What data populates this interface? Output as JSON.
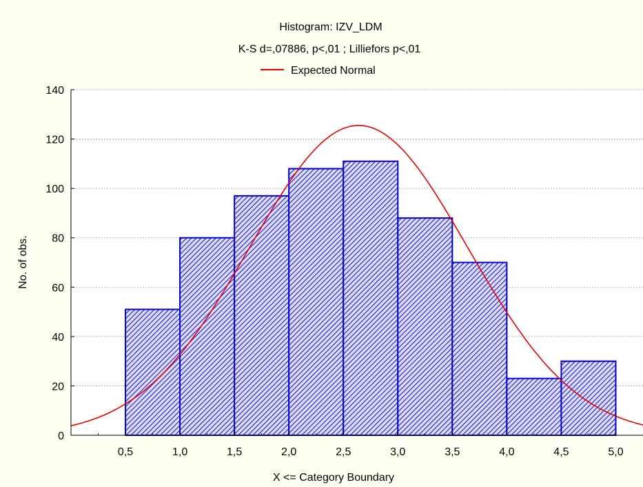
{
  "chart_data": {
    "type": "bar",
    "title": "Histogram: IZV_LDM",
    "subtitle": "K-S d=,07886, p<,01 ; Lilliefors p<,01",
    "xlabel": "X <= Category Boundary",
    "ylabel": "No. of obs.",
    "x_ticks": [
      "0,5",
      "1,0",
      "1,5",
      "2,0",
      "2,5",
      "3,0",
      "3,5",
      "4,0",
      "4,5",
      "5,0"
    ],
    "y_ticks": [
      "0",
      "20",
      "40",
      "60",
      "80",
      "100",
      "120",
      "140"
    ],
    "xlim": [
      0.0,
      5.25
    ],
    "ylim": [
      0,
      140
    ],
    "grid": "horizontal-dashed",
    "legend_position": "top-center",
    "bins": [
      {
        "from": 0.5,
        "to": 1.0,
        "count": 51
      },
      {
        "from": 1.0,
        "to": 1.5,
        "count": 80
      },
      {
        "from": 1.5,
        "to": 2.0,
        "count": 97
      },
      {
        "from": 2.0,
        "to": 2.5,
        "count": 108
      },
      {
        "from": 2.5,
        "to": 3.0,
        "count": 111
      },
      {
        "from": 3.0,
        "to": 3.5,
        "count": 88
      },
      {
        "from": 3.5,
        "to": 4.0,
        "count": 70
      },
      {
        "from": 4.0,
        "to": 4.5,
        "count": 23
      },
      {
        "from": 4.5,
        "to": 5.0,
        "count": 30
      }
    ],
    "series": [
      {
        "name": "Expected Normal",
        "type": "line",
        "mean": 2.64,
        "sd": 1.0,
        "peak": 125.5
      }
    ],
    "colors": {
      "bar_fill": "#dcdcf2",
      "bar_hatch": "#1a1ad4",
      "bar_border": "#0000cc",
      "curve": "#e00000",
      "background": "#fffff2",
      "plot_bg": "#ffffff"
    }
  }
}
